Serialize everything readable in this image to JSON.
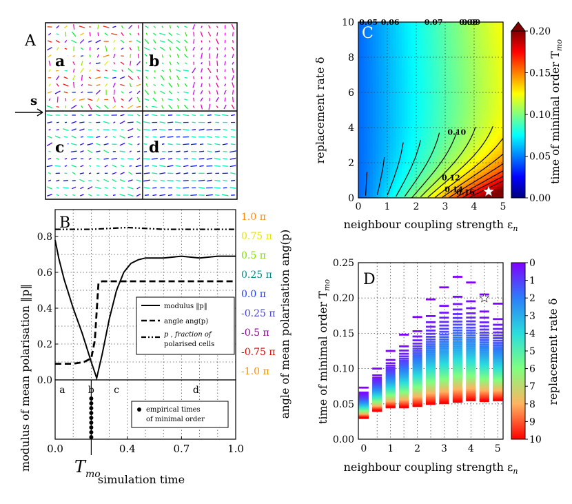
{
  "panel_labels": {
    "A": "A",
    "B": "B",
    "C": "C",
    "D": "D"
  },
  "panel_a": {
    "sub_labels": [
      "a",
      "b",
      "c",
      "d"
    ],
    "arrow_label": "s"
  },
  "panel_b": {
    "ylabel_left": "modulus of mean polarisation ‖p‖",
    "ylabel_right": "angle of mean polarisation ang(p)",
    "xlabel": "simulation time",
    "tmo_label": "T",
    "tmo_sub": "mo",
    "phase_labels": [
      "a",
      "b",
      "c",
      "d"
    ],
    "legend": {
      "modulus": "modulus ‖p‖",
      "angle": "angle ang(p)",
      "pp_line1": "p  , fraction of",
      "pp_line2": "polarised cells"
    },
    "empirical_legend_line1": "empirical times",
    "empirical_legend_line2": "of minimal order"
  },
  "panel_c": {
    "xlabel": "neighbour coupling strength ε",
    "xlabel_sub": "n",
    "ylabel": "replacement rate δ",
    "colorbar_label": "time of minimal order T",
    "colorbar_sub": "mo"
  },
  "panel_d": {
    "xlabel": "neighbour coupling strength ε",
    "xlabel_sub": "n",
    "ylabel": "time of minimal order T",
    "ylabel_sub": "mo",
    "colorbar_label": "replacement rate δ"
  },
  "chart_data": [
    {
      "id": "B",
      "type": "line",
      "title": "",
      "xlabel": "simulation time",
      "ylabel": "modulus of mean polarisation ‖p‖",
      "xlim": [
        0,
        1.0
      ],
      "ylim": [
        0,
        0.95
      ],
      "x_ticks": [
        "0.0",
        "0.4",
        "0.7",
        "1.0"
      ],
      "x_tick_values": [
        0,
        0.4,
        0.7,
        1.0
      ],
      "y_ticks": [
        "0.0",
        "0.2",
        "0.4",
        "0.6",
        "0.8"
      ],
      "y_tick_values": [
        0,
        0.2,
        0.4,
        0.6,
        0.8
      ],
      "right_axis": {
        "label": "angle of mean polarisation ang(p)",
        "ticks": [
          "1.0 π",
          "0.75 π",
          "0.5 π",
          "0.25 π",
          "0.0 π",
          "-0.25 π",
          "-0.5 π",
          "-0.75 π",
          "-1.0 π"
        ],
        "tick_colors": [
          "#ff8c00",
          "#e6e600",
          "#7fe000",
          "#008b8b",
          "#1e3cff",
          "#3f3fd0",
          "#8b008b",
          "#e00000",
          "#ff8c00"
        ]
      },
      "series": [
        {
          "name": "modulus ‖p‖",
          "style": "solid",
          "x": [
            0,
            0.02,
            0.05,
            0.1,
            0.15,
            0.2,
            0.23,
            0.26,
            0.3,
            0.34,
            0.38,
            0.42,
            0.46,
            0.5,
            0.6,
            0.7,
            0.8,
            0.9,
            1.0
          ],
          "y": [
            0.78,
            0.68,
            0.56,
            0.4,
            0.26,
            0.1,
            0.01,
            0.14,
            0.34,
            0.5,
            0.6,
            0.65,
            0.67,
            0.68,
            0.68,
            0.69,
            0.68,
            0.69,
            0.69
          ]
        },
        {
          "name": "angle ang(p)",
          "style": "dashed",
          "x": [
            0,
            0.1,
            0.16,
            0.2,
            0.22,
            0.24,
            0.26,
            0.3,
            0.4,
            1.0
          ],
          "y": [
            0.09,
            0.09,
            0.1,
            0.12,
            0.22,
            0.54,
            0.55,
            0.55,
            0.55,
            0.55
          ]
        },
        {
          "name": "p_p, fraction of polarised cells",
          "style": "dashdot",
          "x": [
            0,
            0.2,
            0.4,
            0.6,
            0.8,
            1.0
          ],
          "y": [
            0.84,
            0.84,
            0.85,
            0.84,
            0.84,
            0.84
          ]
        }
      ],
      "phase_marks": [
        {
          "label": "a",
          "x": 0.04
        },
        {
          "label": "b",
          "x": 0.2
        },
        {
          "label": "c",
          "x": 0.34
        },
        {
          "label": "d",
          "x": 0.78
        }
      ],
      "tmo": 0.2,
      "empirical_dots": [
        0.2,
        0.2,
        0.2,
        0.2,
        0.2,
        0.2,
        0.2,
        0.2,
        0.2
      ]
    },
    {
      "id": "C",
      "type": "heatmap",
      "xlabel": "neighbour coupling strength εn",
      "ylabel": "replacement rate δ",
      "xlim": [
        0,
        5
      ],
      "ylim": [
        0,
        10
      ],
      "x_ticks": [
        0,
        1,
        2,
        3,
        4,
        5
      ],
      "y_ticks": [
        0,
        2,
        4,
        6,
        8,
        10
      ],
      "colorbar": {
        "label": "time of minimal order Tmo",
        "range": [
          0,
          0.2
        ],
        "ticks": [
          "0.00",
          "0.05",
          "0.10",
          "0.15",
          "0.20"
        ]
      },
      "contour_levels": [
        "0.05",
        "0.06",
        "0.07",
        "0.08",
        "0.09",
        "0.10",
        "0.12",
        "0.14",
        "0.16"
      ],
      "star": {
        "x": 4.5,
        "y": 0.2
      }
    },
    {
      "id": "D",
      "type": "scatter",
      "xlabel": "neighbour coupling strength εn",
      "ylabel": "time of minimal order Tmo",
      "xlim": [
        0,
        5.2
      ],
      "ylim": [
        0,
        0.25
      ],
      "x_ticks": [
        0,
        1,
        2,
        3,
        4,
        5
      ],
      "y_ticks": [
        "0.00",
        "0.05",
        "0.10",
        "0.15",
        "0.20",
        "0.25"
      ],
      "colorbar": {
        "label": "replacement rate δ",
        "range": [
          0,
          10
        ],
        "ticks": [
          "0",
          "1",
          "2",
          "3",
          "4",
          "5",
          "6",
          "7",
          "8",
          "9",
          "10"
        ]
      },
      "columns": [
        {
          "x": 0.0,
          "tmin": 0.03,
          "tmax": 0.073
        },
        {
          "x": 0.5,
          "tmin": 0.04,
          "tmax": 0.1
        },
        {
          "x": 1.0,
          "tmin": 0.045,
          "tmax": 0.125
        },
        {
          "x": 1.5,
          "tmin": 0.045,
          "tmax": 0.148
        },
        {
          "x": 2.0,
          "tmin": 0.047,
          "tmax": 0.173
        },
        {
          "x": 2.5,
          "tmin": 0.05,
          "tmax": 0.198
        },
        {
          "x": 3.0,
          "tmin": 0.051,
          "tmax": 0.215
        },
        {
          "x": 3.5,
          "tmin": 0.053,
          "tmax": 0.23
        },
        {
          "x": 4.0,
          "tmin": 0.055,
          "tmax": 0.222
        },
        {
          "x": 4.5,
          "tmin": 0.054,
          "tmax": 0.205
        },
        {
          "x": 5.0,
          "tmin": 0.055,
          "tmax": 0.192
        }
      ],
      "star": {
        "x": 4.5,
        "y": 0.2
      }
    }
  ]
}
